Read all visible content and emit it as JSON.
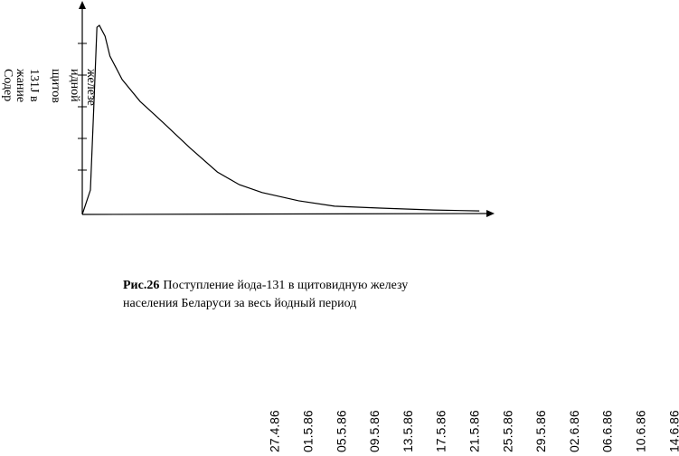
{
  "chart_data": {
    "type": "line",
    "y_label": [
      "Содер",
      "жание",
      "131J в",
      "щитов",
      "идной",
      "железе"
    ],
    "caption_bold": "Рис.26",
    "caption_line1": "Поступление йода-131 в щитовидную железу",
    "caption_line2": "населения Беларуси за весь йодный период",
    "x": [
      0,
      1,
      1.4,
      1.8,
      2.1,
      2.8,
      3.4,
      4.9,
      7.1,
      9.9,
      13.2,
      16.6,
      19.3,
      22.1,
      26.6,
      31,
      36.6,
      43.2,
      48.8
    ],
    "values": [
      0,
      0.77,
      3.29,
      5.91,
      5.97,
      5.63,
      5.0,
      4.26,
      3.57,
      2.91,
      2.11,
      1.34,
      0.94,
      0.69,
      0.43,
      0.26,
      0.2,
      0.14,
      0.11
    ],
    "color": "#000000",
    "xlim": [
      0,
      50
    ],
    "ylim": [
      0,
      6.6
    ],
    "yticks": [
      1.4,
      2.4,
      3.4,
      4.4,
      5.4
    ],
    "dates": [
      "27.4.86",
      "01.5.86",
      "05.5.86",
      "09.5.86",
      "13.5.86",
      "17.5.86",
      "21.5.86",
      "25.5.86",
      "29.5.86",
      "02.6.86",
      "06.6.86",
      "10.6.86",
      "14.6.86"
    ]
  }
}
